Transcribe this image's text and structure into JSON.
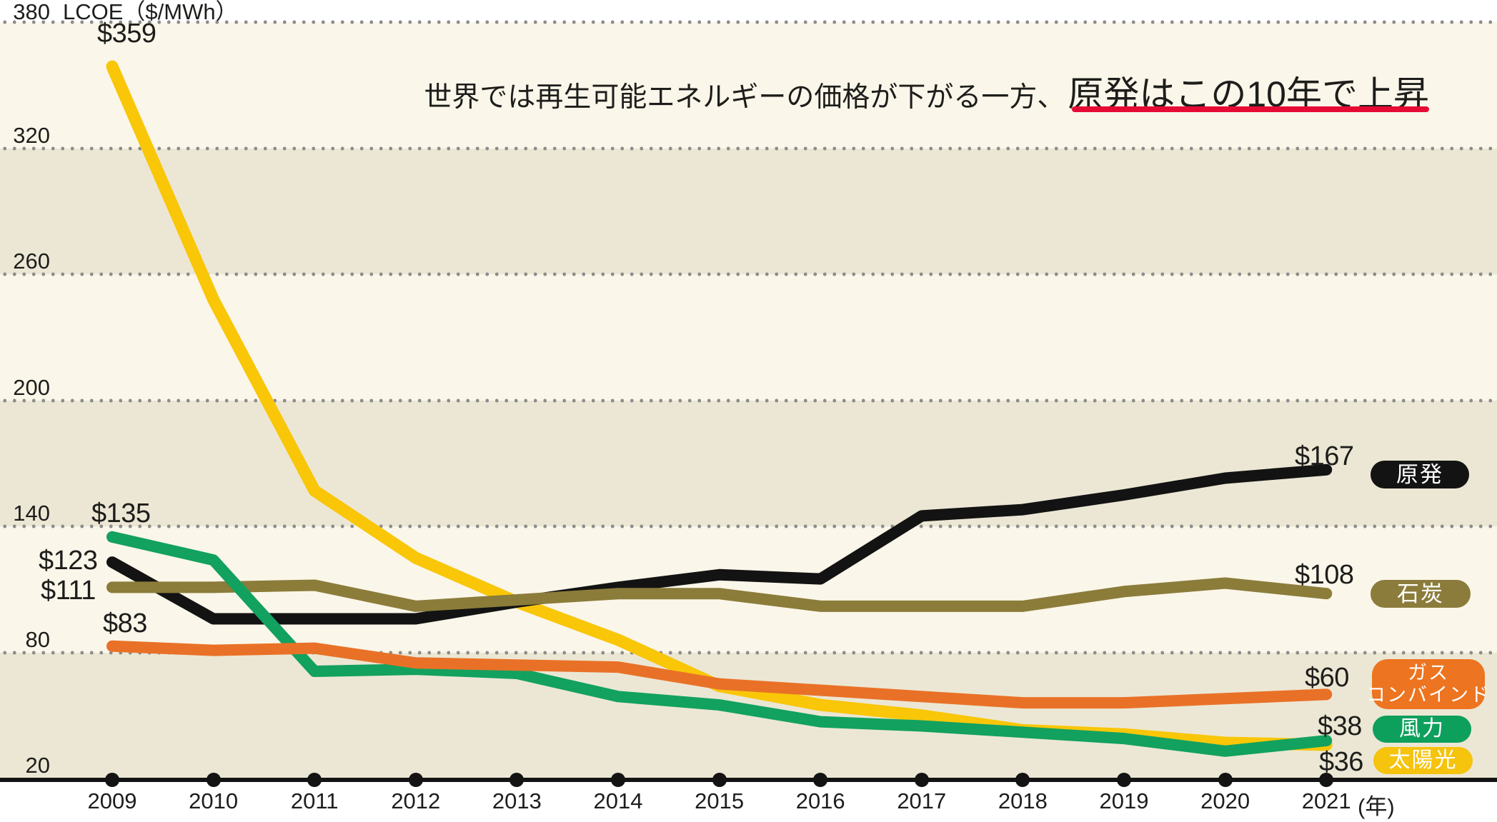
{
  "title": {
    "prefix": "世界では再生可能エネルギーの価格が下がる一方、",
    "highlight": "原発はこの10年で上昇",
    "underline_color": "#e60b35"
  },
  "y_axis": {
    "unit_label": "LCOE（$/MWh）",
    "tick_labels": [
      "380",
      "320",
      "260",
      "200",
      "140",
      "80",
      "20"
    ]
  },
  "x_axis": {
    "unit_label": "(年)",
    "year_labels": [
      "2009",
      "2010",
      "2011",
      "2012",
      "2013",
      "2014",
      "2015",
      "2016",
      "2017",
      "2018",
      "2019",
      "2020",
      "2021"
    ]
  },
  "chart_data": {
    "type": "line",
    "x": [
      2009,
      2010,
      2011,
      2012,
      2013,
      2014,
      2015,
      2016,
      2017,
      2018,
      2019,
      2020,
      2021
    ],
    "ylabel": "LCOE（$/MWh）",
    "ylim": [
      20,
      380
    ],
    "y_gridlines": [
      380,
      320,
      260,
      200,
      140,
      80,
      20
    ],
    "grid": "dotted-horizontal",
    "legend_position": "right",
    "background_bands": [
      "#faf6e9",
      "#ece7d4"
    ],
    "series": [
      {
        "key": "solar",
        "name": "太陽光",
        "color": "#f9c608",
        "values": [
          359,
          248,
          157,
          125,
          104,
          86,
          64,
          55,
          50,
          43,
          41,
          37,
          36
        ],
        "first_value_label": "$359",
        "last_value_label": "$36"
      },
      {
        "key": "nuclear",
        "name": "原発",
        "color": "#131313",
        "values": [
          123,
          96,
          96,
          96,
          104,
          111,
          117,
          115,
          145,
          148,
          155,
          163,
          167
        ],
        "first_value_label": "$123",
        "last_value_label": "$167"
      },
      {
        "key": "coal",
        "name": "石炭",
        "color": "#8b7c3a",
        "values": [
          111,
          111,
          112,
          102,
          105,
          108,
          108,
          102,
          102,
          102,
          109,
          113,
          108
        ],
        "first_value_label": "$111",
        "last_value_label": "$108"
      },
      {
        "key": "wind",
        "name": "風力",
        "color": "#12a15f",
        "values": [
          135,
          124,
          71,
          72,
          70,
          59,
          55,
          47,
          45,
          42,
          39,
          33,
          38
        ],
        "first_value_label": "$135",
        "last_value_label": "$38"
      },
      {
        "key": "gas",
        "name": "ガスコンバインド",
        "color": "#e97127",
        "values": [
          83,
          81,
          82,
          75,
          74,
          73,
          65,
          62,
          59,
          56,
          56,
          58,
          60
        ],
        "first_value_label": "$83",
        "last_value_label": "$60"
      }
    ]
  },
  "legend": [
    {
      "key": "nuclear",
      "lines": [
        "原発"
      ],
      "color": "#131313",
      "text_color": "#ffffff"
    },
    {
      "key": "coal",
      "lines": [
        "石炭"
      ],
      "color": "#8b7c3c",
      "text_color": "#ffffff"
    },
    {
      "key": "gas",
      "lines": [
        "ガス",
        "コンバインド"
      ],
      "color": "#ed7420",
      "text_color": "#ffffff"
    },
    {
      "key": "wind",
      "lines": [
        "風力"
      ],
      "color": "#0da05c",
      "text_color": "#ffffff"
    },
    {
      "key": "solar",
      "lines": [
        "太陽光"
      ],
      "color": "#f6c30d",
      "text_color": "#ffffff"
    }
  ]
}
